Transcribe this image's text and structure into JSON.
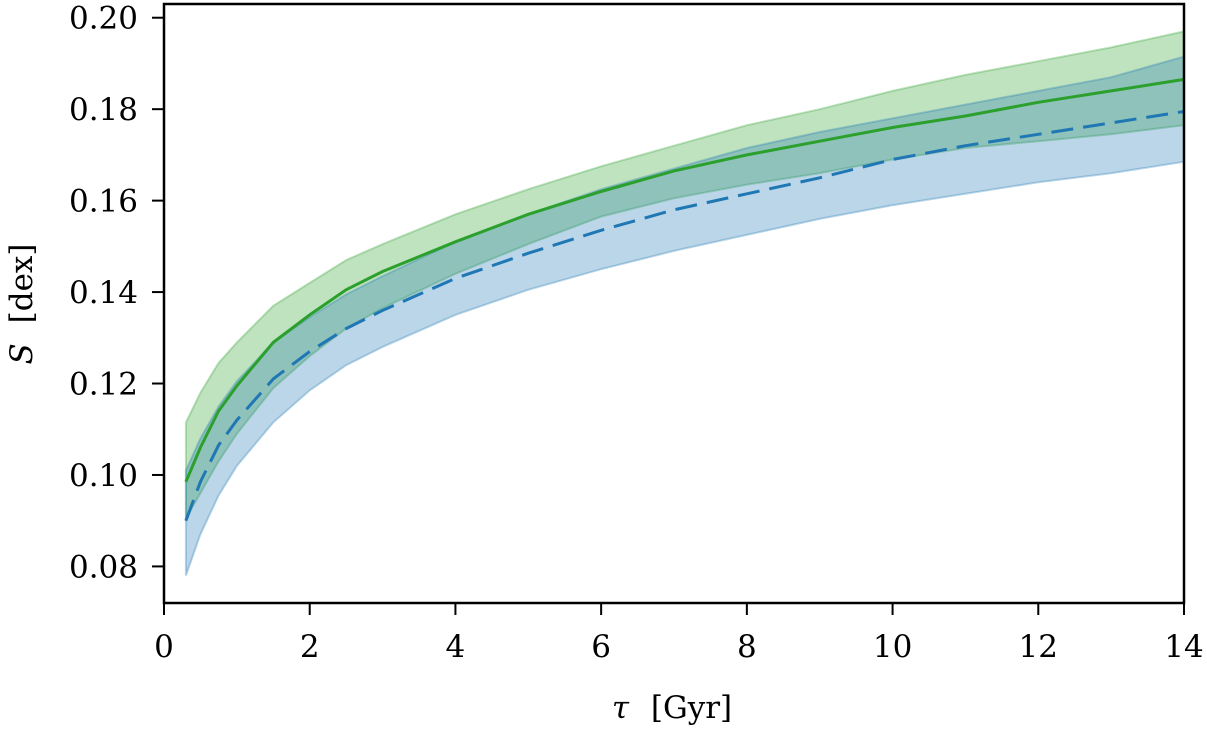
{
  "chart_data": {
    "type": "line",
    "xlabel_symbol": "τ",
    "xlabel_unit": "[Gyr]",
    "ylabel_symbol": "S",
    "ylabel_unit": "[dex]",
    "xlim": [
      0,
      14
    ],
    "ylim": [
      0.072,
      0.203
    ],
    "xticks": [
      0,
      2,
      4,
      6,
      8,
      10,
      12,
      14
    ],
    "xtick_labels": [
      "0",
      "2",
      "4",
      "6",
      "8",
      "10",
      "12",
      "14"
    ],
    "yticks": [
      0.08,
      0.1,
      0.12,
      0.14,
      0.16,
      0.18,
      0.2
    ],
    "ytick_labels": [
      "0.08",
      "0.10",
      "0.12",
      "0.14",
      "0.16",
      "0.18",
      "0.20"
    ],
    "grid": false,
    "x": [
      0.3,
      0.5,
      0.75,
      1,
      1.5,
      2,
      2.5,
      3,
      4,
      5,
      6,
      7,
      8,
      9,
      10,
      11,
      12,
      13,
      14
    ],
    "series": [
      {
        "line_style": "solid",
        "color": "#2ca02c",
        "values": [
          0.0985,
          0.106,
          0.114,
          0.1195,
          0.129,
          0.135,
          0.1405,
          0.1445,
          0.151,
          0.157,
          0.162,
          0.1665,
          0.17,
          0.173,
          0.176,
          0.1785,
          0.1815,
          0.184,
          0.1865
        ],
        "band_upper": [
          0.1115,
          0.118,
          0.1245,
          0.129,
          0.137,
          0.142,
          0.147,
          0.1505,
          0.157,
          0.1625,
          0.1675,
          0.172,
          0.1765,
          0.18,
          0.184,
          0.1875,
          0.1905,
          0.1935,
          0.197
        ],
        "band_lower": [
          0.0905,
          0.096,
          0.103,
          0.109,
          0.119,
          0.126,
          0.132,
          0.1365,
          0.144,
          0.1505,
          0.1565,
          0.1605,
          0.1635,
          0.166,
          0.169,
          0.1715,
          0.173,
          0.1745,
          0.1765
        ]
      },
      {
        "line_style": "dashed",
        "color": "#1f77b4",
        "values": [
          0.09,
          0.0985,
          0.1065,
          0.112,
          0.121,
          0.127,
          0.132,
          0.136,
          0.143,
          0.1485,
          0.1535,
          0.158,
          0.1615,
          0.165,
          0.169,
          0.172,
          0.1745,
          0.177,
          0.1795
        ],
        "band_upper": [
          0.101,
          0.108,
          0.115,
          0.1205,
          0.129,
          0.1345,
          0.1395,
          0.1435,
          0.151,
          0.157,
          0.1625,
          0.167,
          0.1715,
          0.175,
          0.178,
          0.181,
          0.184,
          0.187,
          0.1915
        ],
        "band_lower": [
          0.078,
          0.087,
          0.0955,
          0.102,
          0.1115,
          0.1185,
          0.124,
          0.128,
          0.135,
          0.1405,
          0.145,
          0.149,
          0.1525,
          0.156,
          0.159,
          0.1615,
          0.164,
          0.166,
          0.1685
        ]
      }
    ]
  }
}
